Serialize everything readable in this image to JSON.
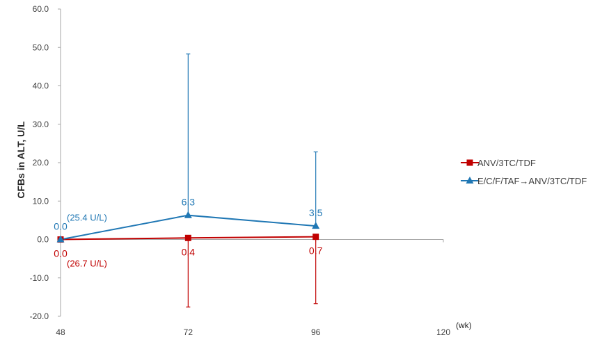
{
  "chart_data": {
    "type": "line",
    "title": "",
    "ylabel": "CFBs in ALT, U/L",
    "xlabel": "",
    "x_unit": "(wk)",
    "x": [
      48,
      72,
      96
    ],
    "xlim": [
      48,
      120
    ],
    "x_ticks": [
      "48",
      "72",
      "96",
      "120"
    ],
    "ylim": [
      -20,
      60
    ],
    "y_ticks": [
      "-20.0",
      "-10.0",
      "0.0",
      "10.0",
      "20.0",
      "30.0",
      "40.0",
      "50.0",
      "60.0"
    ],
    "grid": false,
    "legend_position": "right",
    "series": [
      {
        "name": "ANV/3TC/TDF",
        "marker": "square",
        "color": "#C00000",
        "values": [
          0.0,
          0.4,
          0.7
        ],
        "data_labels": [
          "0.0",
          "0.4",
          "0.7"
        ],
        "error_low": [
          null,
          -17.6,
          -16.7
        ],
        "error_high": [
          null,
          null,
          null
        ],
        "baseline_label": "(26.7 U/L)"
      },
      {
        "name": "E/C/F/TAF→ANV/3TC/TDF",
        "marker": "triangle",
        "color": "#1F77B4",
        "values": [
          0.0,
          6.3,
          3.5
        ],
        "data_labels": [
          "0.0",
          "6.3",
          "3.5"
        ],
        "error_low": [
          null,
          null,
          null
        ],
        "error_high": [
          null,
          48.3,
          22.8
        ],
        "baseline_label": "(25.4 U/L)"
      }
    ]
  }
}
